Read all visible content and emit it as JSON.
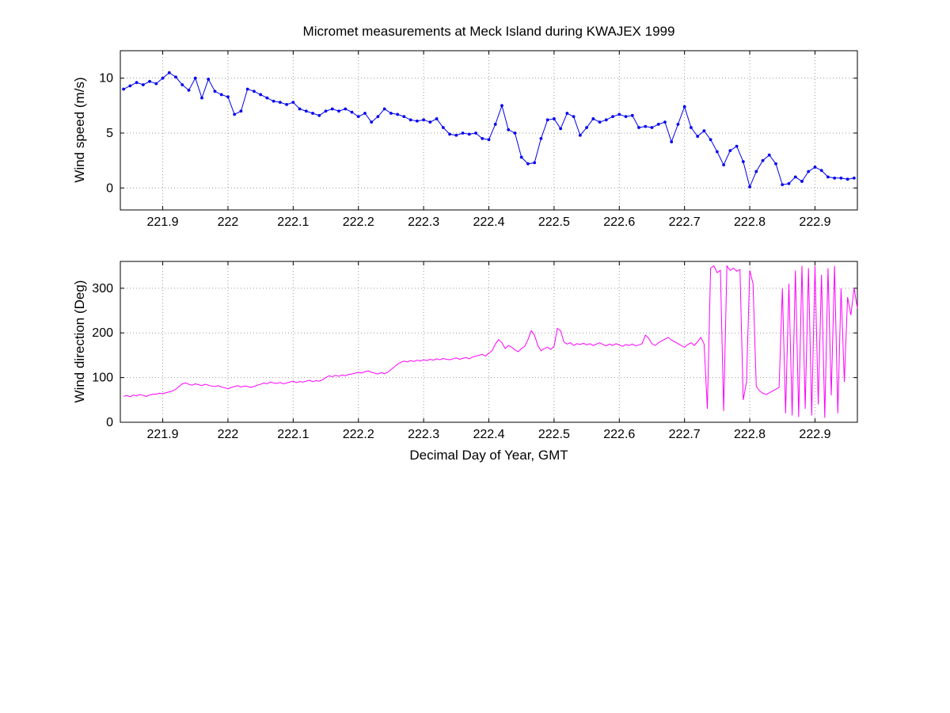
{
  "figure": {
    "title": "Micromet measurements at Meck Island during KWAJEX 1999",
    "xlabel": "Decimal Day of Year, GMT"
  },
  "chart_data": [
    {
      "type": "line",
      "name": "wind-speed",
      "ylabel": "Wind speed (m/s)",
      "color": "#0000EE",
      "marker": "point",
      "grid": true,
      "xlim": [
        221.835,
        222.965
      ],
      "ylim": [
        -2,
        12.5
      ],
      "xticks": [
        221.9,
        222,
        222.1,
        222.2,
        222.3,
        222.4,
        222.5,
        222.6,
        222.7,
        222.8,
        222.9
      ],
      "xtick_labels": [
        "221.9",
        "222",
        "222.1",
        "222.2",
        "222.3",
        "222.4",
        "222.5",
        "222.6",
        "222.7",
        "222.8",
        "222.9"
      ],
      "yticks": [
        0,
        5,
        10
      ],
      "ytick_labels": [
        "0",
        "5",
        "10"
      ],
      "x_start": 221.84,
      "x_step": 0.01,
      "y": [
        9.0,
        9.3,
        9.6,
        9.4,
        9.7,
        9.5,
        10.0,
        10.5,
        10.1,
        9.4,
        8.9,
        10.0,
        8.2,
        9.9,
        8.8,
        8.5,
        8.3,
        6.7,
        7.0,
        9.0,
        8.8,
        8.5,
        8.2,
        7.9,
        7.8,
        7.6,
        7.8,
        7.2,
        7.0,
        6.8,
        6.6,
        7.0,
        7.2,
        7.0,
        7.2,
        6.9,
        6.5,
        6.8,
        6.0,
        6.5,
        7.2,
        6.8,
        6.7,
        6.5,
        6.2,
        6.1,
        6.2,
        6.0,
        6.3,
        5.5,
        4.9,
        4.8,
        5.0,
        4.9,
        5.0,
        4.5,
        4.4,
        5.8,
        7.5,
        5.3,
        5.0,
        2.8,
        2.2,
        2.3,
        4.5,
        6.2,
        6.3,
        5.4,
        6.8,
        6.5,
        4.8,
        5.5,
        6.3,
        6.0,
        6.2,
        6.5,
        6.7,
        6.5,
        6.6,
        5.5,
        5.6,
        5.5,
        5.8,
        6.0,
        4.2,
        5.8,
        7.4,
        5.5,
        4.7,
        5.2,
        4.4,
        3.3,
        2.1,
        3.4,
        3.8,
        2.4,
        0.1,
        1.5,
        2.5,
        3.0,
        2.2,
        0.3,
        0.4,
        1.0,
        0.6,
        1.5,
        1.9,
        1.6,
        1.0,
        0.9,
        0.9,
        0.8,
        0.9
      ]
    },
    {
      "type": "line",
      "name": "wind-direction",
      "ylabel": "Wind direction (Deg)",
      "xlabel": "Decimal Day of Year, GMT",
      "color": "#FF00FF",
      "marker": null,
      "grid": true,
      "xlim": [
        221.835,
        222.965
      ],
      "ylim": [
        0,
        360
      ],
      "xticks": [
        221.9,
        222,
        222.1,
        222.2,
        222.3,
        222.4,
        222.5,
        222.6,
        222.7,
        222.8,
        222.9
      ],
      "xtick_labels": [
        "221.9",
        "222",
        "222.1",
        "222.2",
        "222.3",
        "222.4",
        "222.5",
        "222.6",
        "222.7",
        "222.8",
        "222.9"
      ],
      "yticks": [
        0,
        100,
        200,
        300
      ],
      "ytick_labels": [
        "0",
        "100",
        "200",
        "300"
      ],
      "x_start": 221.84,
      "x_step": 0.005,
      "y": [
        58,
        60,
        57,
        61,
        59,
        62,
        60,
        58,
        61,
        63,
        63,
        65,
        64,
        66,
        68,
        70,
        74,
        80,
        86,
        88,
        85,
        83,
        86,
        84,
        82,
        85,
        83,
        81,
        80,
        82,
        79,
        77,
        75,
        78,
        80,
        82,
        79,
        81,
        80,
        78,
        80,
        83,
        85,
        88,
        86,
        90,
        88,
        87,
        89,
        86,
        88,
        90,
        92,
        89,
        91,
        90,
        92,
        94,
        91,
        93,
        92,
        95,
        100,
        104,
        102,
        105,
        103,
        106,
        104,
        107,
        108,
        110,
        112,
        110,
        113,
        115,
        112,
        110,
        108,
        111,
        109,
        112,
        118,
        124,
        130,
        134,
        137,
        135,
        138,
        136,
        139,
        137,
        140,
        138,
        141,
        139,
        142,
        140,
        143,
        141,
        140,
        142,
        144,
        141,
        143,
        145,
        142,
        146,
        148,
        150,
        152,
        148,
        155,
        160,
        175,
        185,
        178,
        165,
        172,
        168,
        162,
        158,
        165,
        170,
        185,
        205,
        195,
        172,
        160,
        165,
        168,
        163,
        170,
        210,
        205,
        180,
        175,
        178,
        172,
        176,
        174,
        177,
        173,
        176,
        172,
        175,
        178,
        174,
        171,
        175,
        172,
        176,
        173,
        170,
        174,
        172,
        175,
        171,
        173,
        176,
        195,
        188,
        176,
        172,
        178,
        182,
        186,
        190,
        184,
        180,
        176,
        172,
        168,
        174,
        178,
        172,
        180,
        190,
        175,
        30,
        345,
        350,
        335,
        340,
        25,
        350,
        340,
        345,
        338,
        342,
        50,
        90,
        340,
        310,
        80,
        70,
        65,
        62,
        66,
        70,
        74,
        78,
        300,
        20,
        310,
        15,
        340,
        12,
        350,
        30,
        345,
        15,
        350,
        40,
        330,
        10,
        345,
        60,
        350,
        20,
        300,
        90,
        280,
        240,
        300,
        255
      ]
    }
  ]
}
